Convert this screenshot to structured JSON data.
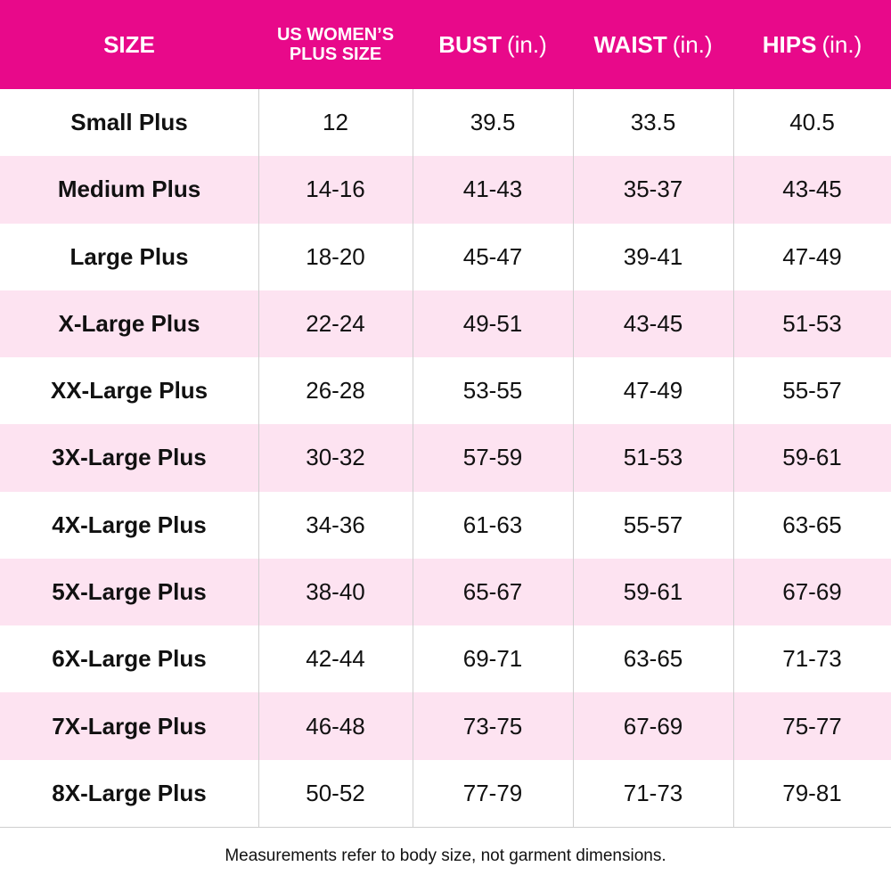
{
  "table": {
    "header": [
      {
        "label": "SIZE"
      },
      {
        "label": "US WOMEN’S PLUS SIZE"
      },
      {
        "label": "BUST",
        "unit": "(in.)"
      },
      {
        "label": "WAIST",
        "unit": "(in.)"
      },
      {
        "label": "HIPS",
        "unit": "(in.)"
      }
    ],
    "rows": [
      [
        "Small Plus",
        "12",
        "39.5",
        "33.5",
        "40.5"
      ],
      [
        "Medium Plus",
        "14-16",
        "41-43",
        "35-37",
        "43-45"
      ],
      [
        "Large Plus",
        "18-20",
        "45-47",
        "39-41",
        "47-49"
      ],
      [
        "X-Large Plus",
        "22-24",
        "49-51",
        "43-45",
        "51-53"
      ],
      [
        "XX-Large Plus",
        "26-28",
        "53-55",
        "47-49",
        "55-57"
      ],
      [
        "3X-Large Plus",
        "30-32",
        "57-59",
        "51-53",
        "59-61"
      ],
      [
        "4X-Large Plus",
        "34-36",
        "61-63",
        "55-57",
        "63-65"
      ],
      [
        "5X-Large Plus",
        "38-40",
        "65-67",
        "59-61",
        "67-69"
      ],
      [
        "6X-Large Plus",
        "42-44",
        "69-71",
        "63-65",
        "71-73"
      ],
      [
        "7X-Large Plus",
        "46-48",
        "73-75",
        "67-69",
        "75-77"
      ],
      [
        "8X-Large Plus",
        "50-52",
        "77-79",
        "71-73",
        "79-81"
      ]
    ],
    "footnote": "Measurements refer to body size, not garment dimensions."
  }
}
